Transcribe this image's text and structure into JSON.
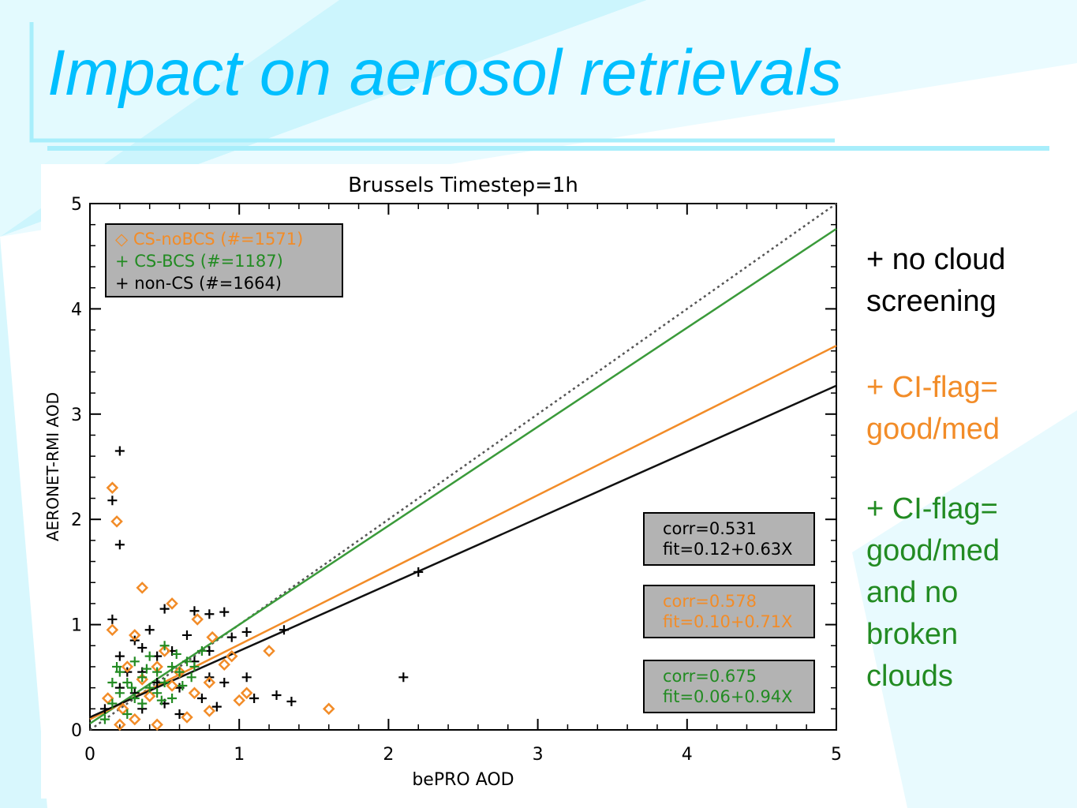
{
  "slide": {
    "title": "Impact on aerosol retrievals",
    "notes": [
      {
        "text": "+ no cloud\nscreening",
        "color": "#000000"
      },
      {
        "text": "+ CI-flag=\ngood/med",
        "color": "#F28C28"
      },
      {
        "text": "+ CI-flag=\ngood/med\nand no\nbroken\nclouds",
        "color": "#228B22"
      }
    ],
    "accent_color": "#00BFFF"
  },
  "chart_data": {
    "type": "scatter",
    "title": "Brussels   Timestep=1h",
    "xlabel": "bePRO AOD",
    "ylabel": "AERONET-RMI AOD",
    "xlim": [
      0,
      5
    ],
    "ylim": [
      0,
      5
    ],
    "xticks": [
      "0",
      "1",
      "2",
      "3",
      "4",
      "5"
    ],
    "yticks": [
      "0",
      "1",
      "2",
      "3",
      "4",
      "5"
    ],
    "grid": false,
    "legend_position": "top-left",
    "legend": [
      {
        "label": "◇ CS-noBCS (#=1571)",
        "color": "#F28C28"
      },
      {
        "label": "+ CS-BCS (#=1187)",
        "color": "#228B22"
      },
      {
        "label": "+ non-CS (#=1664)",
        "color": "#000000"
      }
    ],
    "series": [
      {
        "name": "non-CS",
        "marker": "plus",
        "color": "#000000",
        "points": [
          [
            0.2,
            2.65
          ],
          [
            0.15,
            2.18
          ],
          [
            0.2,
            1.76
          ],
          [
            0.15,
            1.05
          ],
          [
            0.35,
            0.78
          ],
          [
            0.5,
            1.15
          ],
          [
            0.7,
            1.13
          ],
          [
            0.8,
            1.1
          ],
          [
            0.9,
            1.12
          ],
          [
            0.95,
            0.88
          ],
          [
            1.05,
            0.93
          ],
          [
            1.3,
            0.95
          ],
          [
            1.05,
            0.5
          ],
          [
            0.8,
            0.5
          ],
          [
            0.85,
            0.22
          ],
          [
            1.1,
            0.3
          ],
          [
            1.35,
            0.27
          ],
          [
            1.25,
            0.33
          ],
          [
            2.1,
            0.5
          ],
          [
            2.2,
            1.5
          ],
          [
            0.75,
            0.3
          ],
          [
            0.35,
            0.55
          ],
          [
            0.6,
            0.4
          ],
          [
            0.45,
            0.7
          ],
          [
            0.3,
            0.35
          ],
          [
            0.25,
            0.55
          ],
          [
            0.55,
            0.75
          ],
          [
            0.65,
            0.9
          ],
          [
            0.4,
            0.95
          ],
          [
            0.1,
            0.2
          ],
          [
            0.6,
            0.15
          ],
          [
            0.9,
            0.45
          ],
          [
            0.5,
            0.25
          ],
          [
            0.3,
            0.85
          ],
          [
            0.7,
            0.65
          ],
          [
            0.2,
            0.7
          ],
          [
            0.45,
            0.45
          ],
          [
            0.8,
            0.75
          ],
          [
            0.2,
            0.4
          ],
          [
            0.35,
            0.2
          ]
        ]
      },
      {
        "name": "CS-noBCS",
        "marker": "diamond",
        "color": "#F28C28",
        "points": [
          [
            0.15,
            2.3
          ],
          [
            0.18,
            1.98
          ],
          [
            0.35,
            1.35
          ],
          [
            0.55,
            1.2
          ],
          [
            0.72,
            1.05
          ],
          [
            0.82,
            0.88
          ],
          [
            1.2,
            0.75
          ],
          [
            1.05,
            0.35
          ],
          [
            1.0,
            0.28
          ],
          [
            1.6,
            0.2
          ],
          [
            0.8,
            0.18
          ],
          [
            0.65,
            0.12
          ],
          [
            0.45,
            0.05
          ],
          [
            0.3,
            0.1
          ],
          [
            0.2,
            0.05
          ],
          [
            0.12,
            0.3
          ],
          [
            0.25,
            0.6
          ],
          [
            0.5,
            0.75
          ],
          [
            0.6,
            0.55
          ],
          [
            0.9,
            0.62
          ],
          [
            0.4,
            0.32
          ],
          [
            0.7,
            0.35
          ],
          [
            0.3,
            0.9
          ],
          [
            0.15,
            0.95
          ],
          [
            0.55,
            0.42
          ],
          [
            0.35,
            0.48
          ],
          [
            0.22,
            0.2
          ],
          [
            0.8,
            0.45
          ],
          [
            0.95,
            0.7
          ],
          [
            0.45,
            0.6
          ]
        ]
      },
      {
        "name": "CS-BCS",
        "marker": "plus",
        "color": "#228B22",
        "points": [
          [
            0.15,
            0.25
          ],
          [
            0.2,
            0.35
          ],
          [
            0.25,
            0.45
          ],
          [
            0.3,
            0.3
          ],
          [
            0.35,
            0.5
          ],
          [
            0.4,
            0.4
          ],
          [
            0.45,
            0.55
          ],
          [
            0.5,
            0.45
          ],
          [
            0.55,
            0.6
          ],
          [
            0.6,
            0.55
          ],
          [
            0.65,
            0.65
          ],
          [
            0.7,
            0.6
          ],
          [
            0.2,
            0.55
          ],
          [
            0.3,
            0.65
          ],
          [
            0.4,
            0.7
          ],
          [
            0.25,
            0.15
          ],
          [
            0.35,
            0.25
          ],
          [
            0.45,
            0.35
          ],
          [
            0.55,
            0.3
          ],
          [
            0.15,
            0.45
          ],
          [
            0.5,
            0.8
          ],
          [
            0.75,
            0.75
          ],
          [
            0.1,
            0.1
          ],
          [
            0.18,
            0.6
          ],
          [
            0.62,
            0.42
          ],
          [
            0.38,
            0.58
          ],
          [
            0.28,
            0.4
          ],
          [
            0.48,
            0.28
          ],
          [
            0.58,
            0.72
          ],
          [
            0.68,
            0.5
          ]
        ]
      }
    ],
    "fit_lines": [
      {
        "name": "1:1",
        "intercept": 0,
        "slope": 1,
        "color": "#555555",
        "style": "dotted"
      },
      {
        "name": "CS-BCS fit",
        "intercept": 0.06,
        "slope": 0.94,
        "color": "#3A9A3A",
        "style": "solid"
      },
      {
        "name": "CS-noBCS fit",
        "intercept": 0.1,
        "slope": 0.71,
        "color": "#F28C28",
        "style": "solid"
      },
      {
        "name": "non-CS fit",
        "intercept": 0.12,
        "slope": 0.63,
        "color": "#111111",
        "style": "solid"
      }
    ],
    "stat_boxes": [
      {
        "lines": [
          "corr=0.531",
          "fit=0.12+0.63X"
        ],
        "color": "#000000"
      },
      {
        "lines": [
          "corr=0.578",
          "fit=0.10+0.71X"
        ],
        "color": "#F28C28"
      },
      {
        "lines": [
          "corr=0.675",
          "fit=0.06+0.94X"
        ],
        "color": "#228B22"
      }
    ]
  }
}
